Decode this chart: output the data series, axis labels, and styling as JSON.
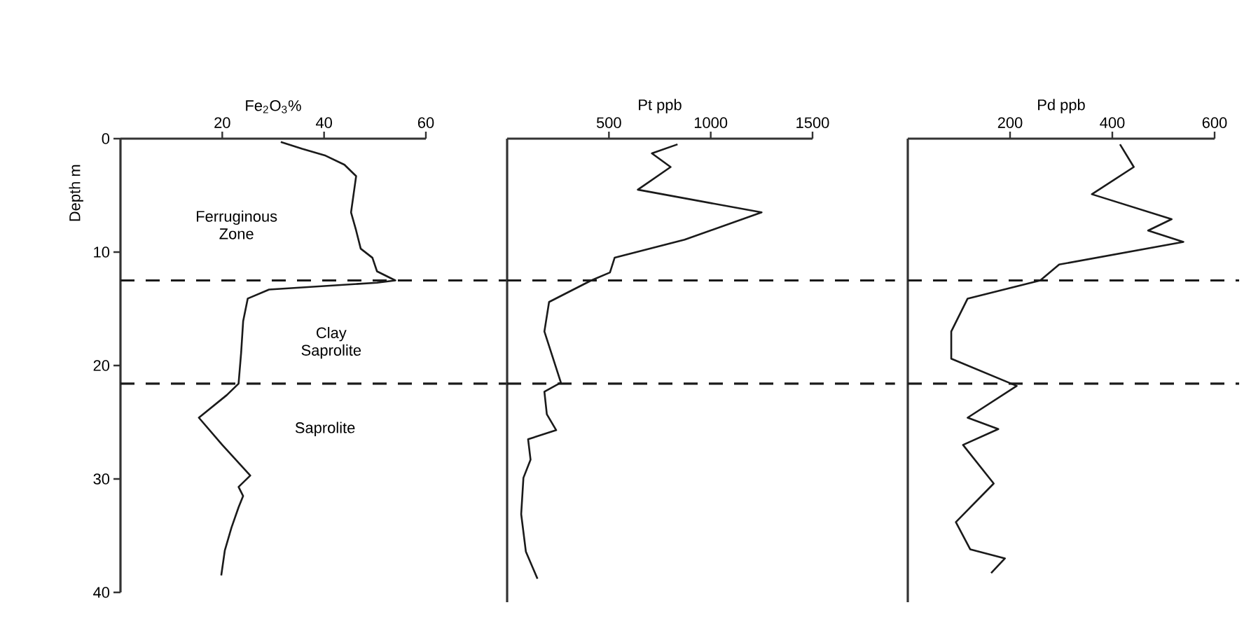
{
  "chart_data": [
    {
      "type": "line",
      "xlabel": "Fe$_{2}$O$_{3}$%",
      "ylabel": "Depth m",
      "xlim": [
        0,
        60
      ],
      "xticks": [
        20,
        40,
        60
      ],
      "ylim": [
        40,
        0
      ],
      "yticks": [
        0,
        10,
        20,
        30,
        40
      ],
      "annotations": [
        "Ferruginous Zone",
        "Clay Saprolite",
        "Saprolite"
      ],
      "ref_lines": [
        {
          "axis": "y",
          "value": 12.5,
          "line_style": "dashed",
          "color": "#1a1a1a"
        },
        {
          "axis": "y",
          "value": 21.6,
          "line_style": "dashed",
          "color": "#1a1a1a"
        }
      ],
      "series": [
        {
          "color": "#1a1a1a",
          "x": [
            31.5,
            35.7,
            40.3,
            44,
            46.3,
            45.8,
            45.3,
            46.3,
            47.2,
            49.5,
            50.4,
            54,
            50.4,
            29.2,
            25,
            24.1,
            23.7,
            23.2,
            20.9,
            15.4,
            20,
            25.5,
            23.2,
            24.1,
            23.2,
            21.8,
            20.5,
            19.8
          ],
          "values": [
            0.3,
            0.9,
            1.5,
            2.3,
            3.3,
            4.9,
            6.5,
            8.1,
            9.7,
            10.5,
            11.7,
            12.5,
            12.7,
            13.3,
            14.1,
            16.1,
            18.9,
            21.6,
            22.6,
            24.6,
            27,
            29.7,
            30.7,
            31.5,
            32.5,
            34.3,
            36.3,
            38.5
          ]
        }
      ]
    },
    {
      "type": "line",
      "xlabel": "Pt ppb",
      "xlim": [
        0,
        1500
      ],
      "xticks": [
        500,
        1000,
        1500
      ],
      "ylim": [
        40,
        0
      ],
      "tick_labels": "x",
      "ref_lines": [
        {
          "axis": "y",
          "value": 12.5,
          "line_style": "dashed",
          "color": "#1a1a1a"
        },
        {
          "axis": "y",
          "value": 21.6,
          "line_style": "dashed",
          "color": "#1a1a1a"
        }
      ],
      "series": [
        {
          "color": "#1a1a1a",
          "x": [
            837,
            711,
            803,
            642,
            1250,
            872,
            528,
            505,
            413,
            206,
            183,
            264,
            183,
            195,
            241,
            103,
            115,
            80,
            69,
            92,
            149
          ],
          "values": [
            0.5,
            1.3,
            2.5,
            4.5,
            6.5,
            8.9,
            10.5,
            11.8,
            12.5,
            14.4,
            17,
            21.5,
            22.3,
            24.3,
            25.7,
            26.5,
            28.3,
            29.9,
            33.1,
            36.4,
            38.8
          ]
        }
      ]
    },
    {
      "type": "line",
      "xlabel": "Pd ppb",
      "xlim": [
        0,
        600
      ],
      "xticks": [
        200,
        400,
        600
      ],
      "ylim": [
        40,
        0
      ],
      "tick_labels": "x",
      "ref_lines": [
        {
          "axis": "y",
          "value": 12.5,
          "line_style": "dashed",
          "color": "#1a1a1a"
        },
        {
          "axis": "y",
          "value": 21.6,
          "line_style": "dashed",
          "color": "#1a1a1a"
        }
      ],
      "series": [
        {
          "color": "#1a1a1a",
          "x": [
            415,
            442,
            360,
            516,
            470,
            539,
            296,
            259,
            117,
            85,
            85,
            213,
            117,
            177,
            108,
            168,
            94,
            122,
            190,
            163
          ],
          "values": [
            0.5,
            2.5,
            4.9,
            7.1,
            8.1,
            9.1,
            11.1,
            12.5,
            14.1,
            17,
            19.4,
            21.8,
            24.6,
            25.6,
            27,
            30.4,
            33.8,
            36.2,
            37,
            38.3
          ]
        }
      ]
    }
  ]
}
